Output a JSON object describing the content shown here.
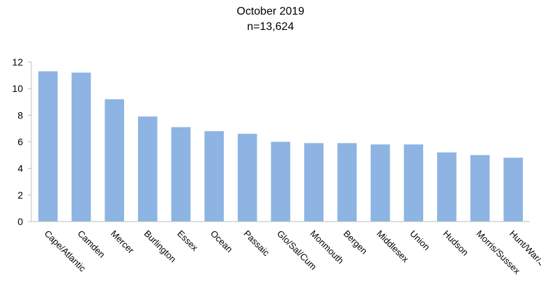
{
  "chart_data": {
    "type": "bar",
    "title": "October 2019",
    "subtitle": "n=13,624",
    "xlabel": "",
    "ylabel": "",
    "categories": [
      "Cape/Atlantic",
      "Camden",
      "Mercer",
      "Burlington",
      "Essex",
      "Ocean",
      "Passaic",
      "Glo/Sal/Cum",
      "Monmouth",
      "Bergen",
      "Middlesex",
      "Union",
      "Hudson",
      "Morris/Sussex",
      "Hunt/War/Som"
    ],
    "values": [
      11.3,
      11.2,
      9.2,
      7.9,
      7.1,
      6.8,
      6.6,
      6.0,
      5.9,
      5.9,
      5.8,
      5.8,
      5.2,
      5.0,
      4.8
    ],
    "ylim": [
      0,
      12
    ],
    "yticks": [
      0,
      2,
      4,
      6,
      8,
      10,
      12
    ],
    "grid": false,
    "legend": "none",
    "bar_color": "#8db4e2",
    "axis_color": "#bfbfbf"
  }
}
